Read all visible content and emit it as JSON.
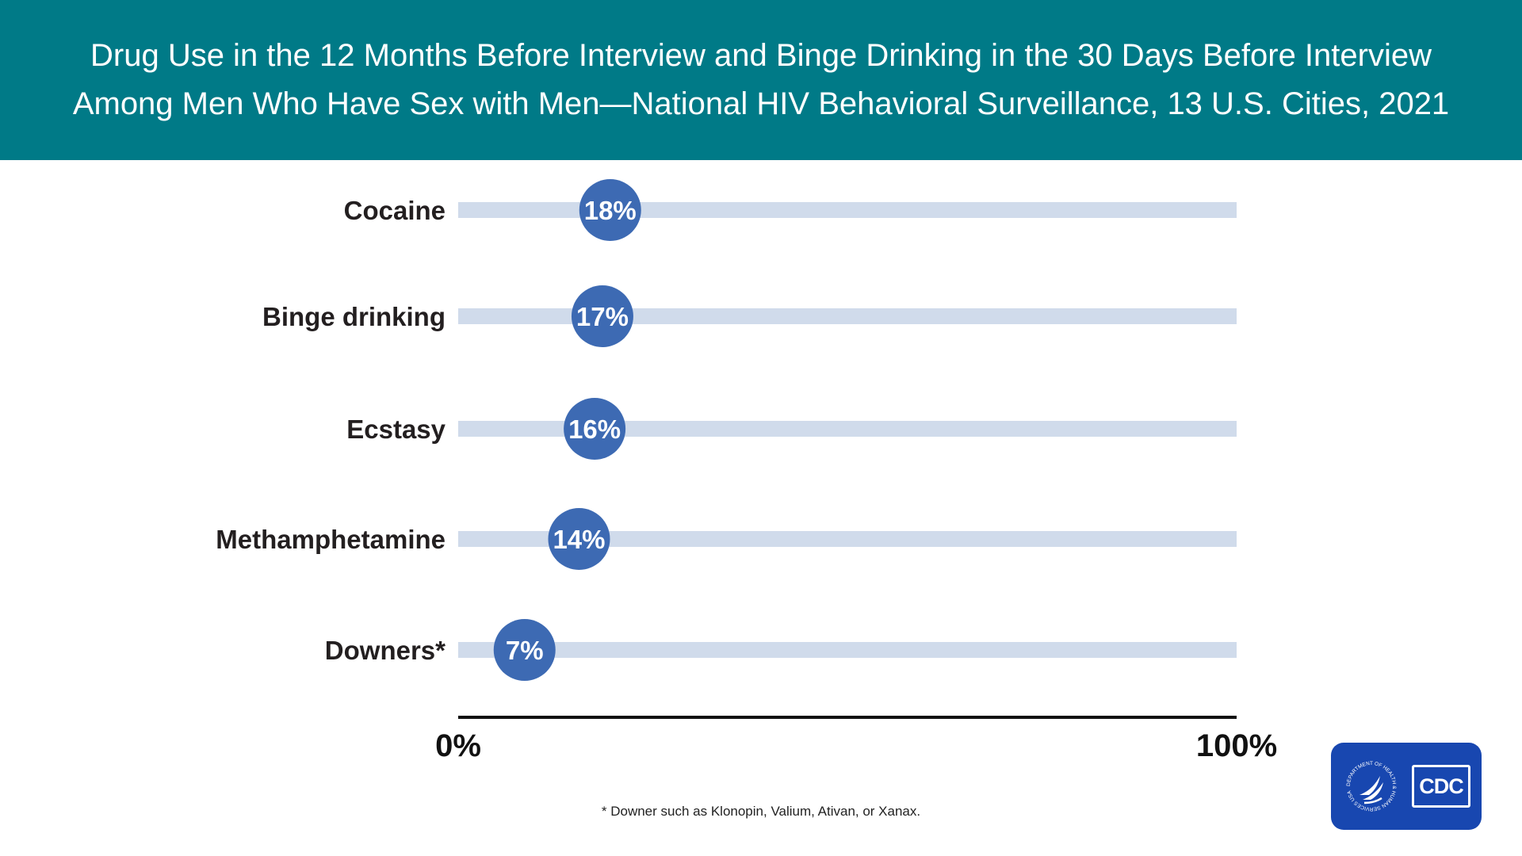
{
  "header": {
    "title_line1": "Drug Use in the 12 Months Before Interview and Binge Drinking in the 30 Days Before Interview",
    "title_line2": "Among Men Who Have Sex with Men—National HIV Behavioral Surveillance, 13 U.S. Cities, 2021"
  },
  "chart_data": {
    "type": "bar",
    "style": "lollipop-horizontal",
    "categories": [
      "Cocaine",
      "Binge drinking",
      "Ecstasy",
      "Methamphetamine",
      "Downers*"
    ],
    "values": [
      18,
      17,
      16,
      14,
      7
    ],
    "value_labels": [
      "18%",
      "17%",
      "16%",
      "14%",
      "7%"
    ],
    "xlim": [
      0,
      100
    ],
    "x_tick_labels": [
      "0%",
      "100%"
    ],
    "grid": false
  },
  "footnote": "* Downer such as Klonopin, Valium, Ativan, or Xanax.",
  "logo": {
    "seal_text": "DEPARTMENT OF HEALTH & HUMAN SERVICES USA",
    "cdc_text": "CDC"
  },
  "colors": {
    "header_bg": "#007a87",
    "track": "#d0dbeb",
    "marker": "#3d6ab3",
    "axis": "#111111",
    "logo_bg": "#1847b0"
  }
}
